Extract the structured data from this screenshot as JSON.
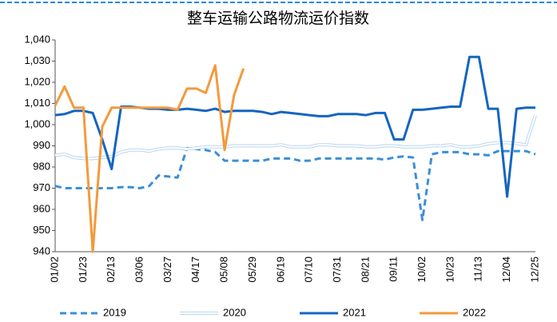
{
  "chart_data": {
    "type": "line",
    "title": "整车运输公路物流运价指数",
    "categories": [
      "01/02",
      null,
      null,
      "01/23",
      null,
      null,
      "02/13",
      null,
      null,
      "03/06",
      null,
      null,
      "03/27",
      null,
      null,
      "04/17",
      null,
      null,
      "05/08",
      null,
      null,
      "05/29",
      null,
      null,
      "06/19",
      null,
      null,
      "07/10",
      null,
      null,
      "07/31",
      null,
      null,
      "08/21",
      null,
      null,
      "09/11",
      null,
      null,
      "10/02",
      null,
      null,
      "10/23",
      null,
      null,
      "11/13",
      null,
      null,
      "12/04",
      null,
      null,
      "12/25"
    ],
    "series": [
      {
        "name": "2019",
        "color": "#3a8fd8",
        "dash": true,
        "values": [
          971,
          970,
          970,
          970,
          970,
          970,
          970,
          970.5,
          970.5,
          970,
          971,
          976,
          975.5,
          975,
          989,
          988.5,
          988,
          987,
          983,
          983,
          983,
          983,
          983,
          984,
          984,
          984,
          983,
          983,
          984,
          984,
          984,
          984,
          984,
          984,
          984,
          983.5,
          984.5,
          985,
          984.5,
          955,
          986,
          987,
          987,
          987,
          986,
          986,
          985.5,
          987.5,
          987.5,
          987.5,
          987.5,
          986
        ]
      },
      {
        "name": "2020",
        "color": "#cfe3f5",
        "dash": false,
        "values": [
          985.5,
          986,
          984.5,
          984,
          984,
          984.5,
          985,
          987,
          988,
          988,
          987.5,
          988.5,
          989,
          989,
          988.5,
          989,
          989.5,
          989.5,
          989.5,
          990,
          990,
          990,
          990,
          990,
          990.5,
          989.5,
          989.5,
          989.5,
          990.5,
          990.5,
          990,
          990,
          990,
          989.5,
          989.5,
          990,
          990,
          989.5,
          989.5,
          989.5,
          990,
          990,
          990.5,
          989.5,
          989.5,
          990,
          991,
          991.5,
          991.5,
          991,
          990.5,
          1004.5
        ]
      },
      {
        "name": "2021",
        "color": "#1565c0",
        "dash": false,
        "values": [
          1004.5,
          1005,
          1006.5,
          1006.5,
          1005.5,
          993,
          979,
          1008.5,
          1008.5,
          1008,
          1007.5,
          1007.5,
          1007,
          1007,
          1007.5,
          1007,
          1006.5,
          1007.5,
          1006,
          1006.5,
          1006.5,
          1006.5,
          1006,
          1005,
          1006,
          1005.5,
          1005,
          1004.5,
          1004,
          1004,
          1005,
          1005,
          1005,
          1004.5,
          1005.5,
          1005.5,
          993,
          993,
          1007,
          1007,
          1007.5,
          1008,
          1008.5,
          1008.5,
          1032,
          1032,
          1007.5,
          1007.5,
          966,
          1007.5,
          1008,
          1008
        ]
      },
      {
        "name": "2022",
        "color": "#f39a3c",
        "dash": false,
        "values": [
          1009,
          1018,
          1008,
          1008,
          940,
          999,
          1008,
          1008,
          1008,
          1008,
          1008,
          1008,
          1008,
          1007,
          1017,
          1017,
          1015,
          1028,
          988,
          1014,
          1026.5,
          null,
          null,
          null,
          null,
          null,
          null,
          null,
          null,
          null,
          null,
          null,
          null,
          null,
          null,
          null,
          null,
          null,
          null,
          null,
          null,
          null,
          null,
          null,
          null,
          null,
          null,
          null,
          null,
          null,
          null,
          null
        ]
      }
    ],
    "ylim": [
      940,
      1040
    ],
    "yticks": [
      940,
      950,
      960,
      970,
      980,
      990,
      {
        "value": 1000,
        "label": "1,000"
      },
      {
        "value": 1010,
        "label": "1,010"
      },
      {
        "value": 1020,
        "label": "1,020"
      },
      {
        "value": 1030,
        "label": "1,030"
      },
      {
        "value": 1040,
        "label": "1,040"
      }
    ],
    "legend": "bottom"
  }
}
